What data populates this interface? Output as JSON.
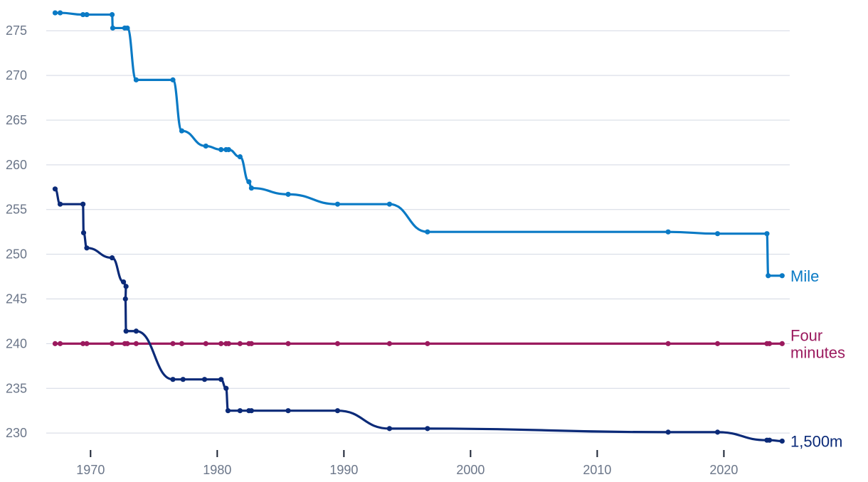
{
  "chart_data": {
    "type": "line",
    "title": "",
    "xlabel": "",
    "ylabel": "",
    "xlim": [
      1966.5,
      2025.2
    ],
    "ylim": [
      228.5,
      277.8
    ],
    "x_ticks": [
      1970,
      1980,
      1990,
      2000,
      2010,
      2020
    ],
    "x_tick_labels": [
      "1970",
      "1980",
      "1990",
      "2000",
      "2010",
      "2020"
    ],
    "y_ticks": [
      230,
      235,
      240,
      245,
      250,
      255,
      260,
      265,
      270,
      275
    ],
    "y_tick_labels": [
      "230",
      "235",
      "240",
      "245",
      "250",
      "255",
      "260",
      "265",
      "270",
      "275"
    ],
    "grid": true,
    "legend": "direct labels at right end of lines",
    "series": [
      {
        "name": "Mile",
        "color": "#0a7ac5",
        "label_lines": [
          "Mile"
        ],
        "points": [
          [
            1967.2,
            277.0
          ],
          [
            1967.6,
            277.0
          ],
          [
            1969.4,
            276.8
          ],
          [
            1969.7,
            276.8
          ],
          [
            1971.7,
            276.8
          ],
          [
            1971.75,
            275.3
          ],
          [
            1972.7,
            275.3
          ],
          [
            1972.9,
            275.3
          ],
          [
            1973.6,
            269.5
          ],
          [
            1976.5,
            269.5
          ],
          [
            1977.2,
            263.8
          ],
          [
            1979.1,
            262.1
          ],
          [
            1980.3,
            261.7
          ],
          [
            1980.7,
            261.7
          ],
          [
            1980.9,
            261.7
          ],
          [
            1981.8,
            260.9
          ],
          [
            1982.5,
            258.1
          ],
          [
            1982.7,
            257.4
          ],
          [
            1985.6,
            256.7
          ],
          [
            1989.5,
            255.6
          ],
          [
            1993.6,
            255.6
          ],
          [
            1996.6,
            252.5
          ],
          [
            2015.6,
            252.5
          ],
          [
            2019.5,
            252.3
          ],
          [
            2023.4,
            252.3
          ],
          [
            2023.5,
            247.6
          ],
          [
            2024.6,
            247.6
          ]
        ]
      },
      {
        "name": "Four minutes",
        "color": "#9b1a5e",
        "label_lines": [
          "Four",
          "minutes"
        ],
        "points": [
          [
            1967.2,
            240
          ],
          [
            1967.6,
            240
          ],
          [
            1969.4,
            240
          ],
          [
            1969.7,
            240
          ],
          [
            1971.7,
            240
          ],
          [
            1972.7,
            240
          ],
          [
            1972.9,
            240
          ],
          [
            1973.6,
            240
          ],
          [
            1976.5,
            240
          ],
          [
            1977.2,
            240
          ],
          [
            1979.1,
            240
          ],
          [
            1980.3,
            240
          ],
          [
            1980.7,
            240
          ],
          [
            1980.9,
            240
          ],
          [
            1981.8,
            240
          ],
          [
            1982.5,
            240
          ],
          [
            1982.7,
            240
          ],
          [
            1985.6,
            240
          ],
          [
            1989.5,
            240
          ],
          [
            1993.6,
            240
          ],
          [
            1996.6,
            240
          ],
          [
            2015.6,
            240
          ],
          [
            2019.5,
            240
          ],
          [
            2023.4,
            240
          ],
          [
            2023.6,
            240
          ],
          [
            2024.6,
            240
          ]
        ]
      },
      {
        "name": "1,500m",
        "color": "#0b2a78",
        "label_lines": [
          "1,500m"
        ],
        "points": [
          [
            1967.2,
            257.3
          ],
          [
            1967.6,
            255.6
          ],
          [
            1969.4,
            255.6
          ],
          [
            1969.45,
            252.4
          ],
          [
            1969.7,
            250.7
          ],
          [
            1971.7,
            249.6
          ],
          [
            1972.6,
            246.9
          ],
          [
            1972.8,
            246.4
          ],
          [
            1972.75,
            245.0
          ],
          [
            1972.8,
            241.4
          ],
          [
            1973.6,
            241.4
          ],
          [
            1976.5,
            236.0
          ],
          [
            1977.3,
            236.0
          ],
          [
            1979.0,
            236.0
          ],
          [
            1980.3,
            236.0
          ],
          [
            1980.7,
            235.0
          ],
          [
            1980.85,
            232.5
          ],
          [
            1981.8,
            232.5
          ],
          [
            1982.5,
            232.5
          ],
          [
            1982.7,
            232.5
          ],
          [
            1985.6,
            232.5
          ],
          [
            1989.5,
            232.5
          ],
          [
            1993.6,
            230.5
          ],
          [
            1996.6,
            230.5
          ],
          [
            2015.6,
            230.1
          ],
          [
            2019.5,
            230.1
          ],
          [
            2023.4,
            229.2
          ],
          [
            2023.6,
            229.2
          ],
          [
            2024.6,
            229.1
          ]
        ]
      }
    ]
  }
}
